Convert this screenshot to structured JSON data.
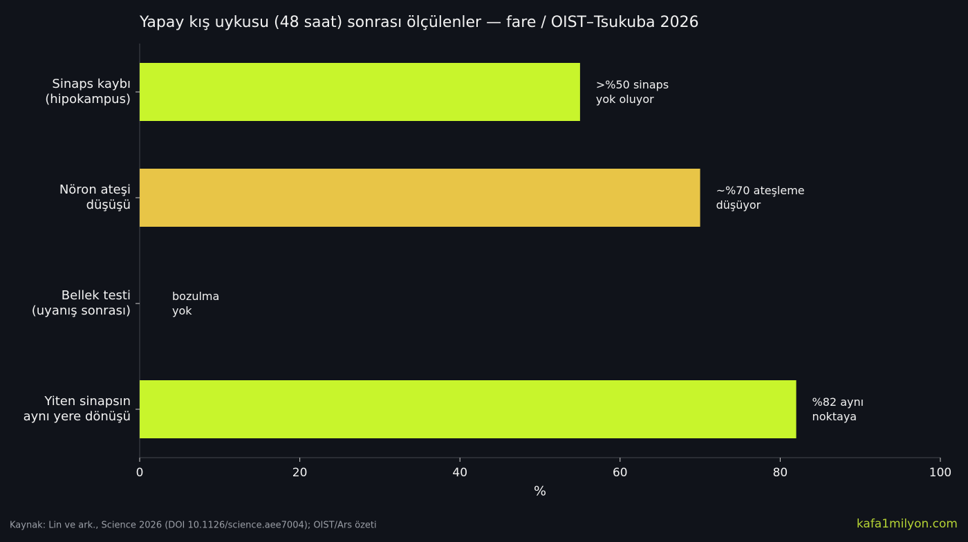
{
  "chart_data": {
    "type": "barh",
    "title": "Yapay kış uykusu (48 saat) sonrası ölçülenler — fare / OIST–Tsukuba 2026",
    "categories": [
      "Sinaps kaybı\n(hipokampus)",
      "Nöron ateşi\ndüşüşü",
      "Bellek testi\n(uyanış sonrası)",
      "Yiten sinapsın\naynı yere dönüşü"
    ],
    "values": [
      55,
      70,
      0,
      82
    ],
    "colors": [
      "#c8f52c",
      "#e8c547",
      "#c8f52c",
      "#c8f52c"
    ],
    "annotations": [
      ">%50 sinaps\nyok oluyor",
      "~%70 ateşleme\ndüşüyor",
      "bozulma\nyok",
      "%82 aynı\nnoktaya"
    ],
    "xlabel": "%",
    "xlim": [
      0,
      100
    ],
    "xticks": [
      0,
      20,
      40,
      60,
      80,
      100
    ],
    "source": "Kaynak: Lin ve ark., Science 2026 (DOI 10.1126/science.aee7004); OIST/Ars özeti",
    "site": "kafa1milyon.com"
  }
}
